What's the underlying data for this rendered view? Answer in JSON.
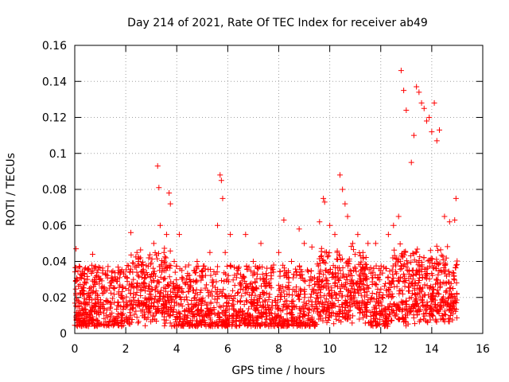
{
  "chart_data": {
    "type": "scatter",
    "title": "Day 214 of 2021, Rate Of TEC Index for receiver ab49",
    "xlabel": "GPS time / hours",
    "ylabel": "ROTI / TECUs",
    "xlim": [
      0,
      16
    ],
    "ylim": [
      0,
      0.16
    ],
    "x_ticks": [
      0,
      2,
      4,
      6,
      8,
      10,
      12,
      14,
      16
    ],
    "y_ticks": [
      0,
      0.02,
      0.04,
      0.06,
      0.08,
      0.1,
      0.12,
      0.14,
      0.16
    ],
    "x_tick_labels": [
      "0",
      "2",
      "4",
      "6",
      "8",
      "10",
      "12",
      "14",
      "16"
    ],
    "y_tick_labels": [
      "0",
      "0.02",
      "0.04",
      "0.06",
      "0.08",
      "0.1",
      "0.12",
      "0.14",
      "0.16"
    ],
    "grid": true,
    "marker": "+",
    "color": "#ff0000",
    "series": [
      {
        "name": "ROTI",
        "x": [
          0.05,
          0.1,
          0.15,
          0.3,
          0.5,
          0.7,
          0.9,
          1.1,
          1.3,
          1.6,
          1.8,
          2.0,
          2.2,
          2.3,
          2.5,
          2.7,
          2.9,
          3.1,
          3.25,
          3.3,
          3.35,
          3.5,
          3.6,
          3.7,
          3.75,
          3.9,
          4.1,
          4.2,
          4.5,
          4.8,
          5.0,
          5.3,
          5.6,
          5.7,
          5.75,
          5.8,
          5.9,
          6.1,
          6.4,
          6.7,
          7.0,
          7.3,
          7.5,
          7.8,
          8.0,
          8.2,
          8.5,
          8.8,
          9.0,
          9.3,
          9.6,
          9.75,
          9.8,
          10.0,
          10.2,
          10.4,
          10.5,
          10.6,
          10.7,
          10.9,
          11.1,
          11.3,
          11.5,
          11.8,
          12.0,
          12.3,
          12.5,
          12.7,
          12.8,
          12.9,
          13.0,
          13.2,
          13.3,
          13.4,
          13.5,
          13.6,
          13.7,
          13.8,
          13.9,
          14.0,
          14.1,
          14.2,
          14.3,
          14.5,
          14.7,
          14.9,
          14.95
        ],
        "y": [
          0.047,
          0.03,
          0.018,
          0.022,
          0.03,
          0.044,
          0.02,
          0.035,
          0.018,
          0.03,
          0.015,
          0.025,
          0.056,
          0.03,
          0.04,
          0.028,
          0.042,
          0.05,
          0.093,
          0.081,
          0.06,
          0.045,
          0.055,
          0.078,
          0.072,
          0.04,
          0.055,
          0.035,
          0.03,
          0.04,
          0.035,
          0.045,
          0.06,
          0.088,
          0.085,
          0.075,
          0.045,
          0.055,
          0.035,
          0.055,
          0.04,
          0.05,
          0.03,
          0.038,
          0.045,
          0.063,
          0.04,
          0.058,
          0.05,
          0.048,
          0.062,
          0.075,
          0.073,
          0.06,
          0.055,
          0.088,
          0.08,
          0.072,
          0.065,
          0.05,
          0.055,
          0.045,
          0.05,
          0.05,
          0.035,
          0.055,
          0.06,
          0.065,
          0.146,
          0.135,
          0.124,
          0.095,
          0.11,
          0.137,
          0.134,
          0.128,
          0.125,
          0.118,
          0.12,
          0.112,
          0.128,
          0.107,
          0.113,
          0.065,
          0.062,
          0.063,
          0.075
        ]
      }
    ],
    "band_pattern_note": "dense cloud of low values between 0.005 and 0.04 across 0-15 h"
  }
}
